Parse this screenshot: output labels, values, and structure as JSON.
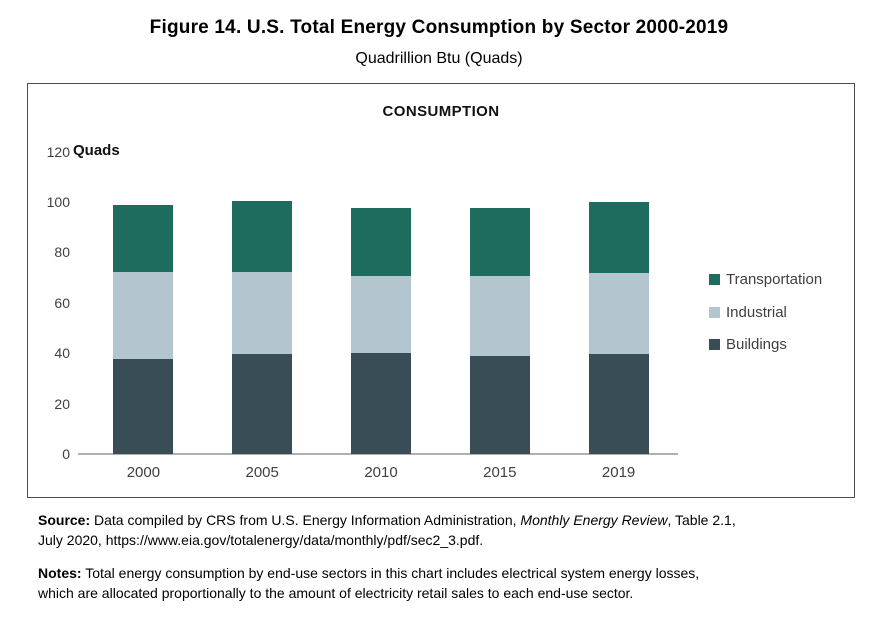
{
  "page": {
    "title": "Figure 14. U.S. Total Energy Consumption by Sector 2000-2019",
    "subtitle": "Quadrillion Btu (Quads)"
  },
  "chart": {
    "inner_title": "CONSUMPTION",
    "unit_label": "Quads",
    "colors": {
      "transportation": "#1E6C5D",
      "industrial": "#B3C6CF",
      "buildings": "#394D57",
      "axis_line": "#B0B0B0",
      "box_border": "#4D4D4D",
      "tick_text": "#3F3F3F"
    }
  },
  "chart_data": {
    "type": "bar",
    "stacked": true,
    "title": "CONSUMPTION",
    "ylabel": "Quads",
    "ylim": [
      0,
      120
    ],
    "yticks": [
      0,
      20,
      40,
      60,
      80,
      100,
      120
    ],
    "grid": false,
    "legend_position": "right",
    "categories": [
      "2000",
      "2005",
      "2010",
      "2015",
      "2019"
    ],
    "series": [
      {
        "name": "Buildings",
        "color": "#394D57",
        "values": [
          37.7,
          39.6,
          40.0,
          38.9,
          39.6
        ]
      },
      {
        "name": "Industrial",
        "color": "#B3C6CF",
        "values": [
          34.7,
          32.8,
          30.6,
          31.6,
          32.2
        ]
      },
      {
        "name": "Transportation",
        "color": "#1E6C5D",
        "values": [
          26.5,
          28.0,
          26.9,
          27.0,
          28.2
        ]
      }
    ],
    "legend_order": [
      "Transportation",
      "Industrial",
      "Buildings"
    ]
  },
  "footer": {
    "source": {
      "label": "Source:",
      "line1_pre_italic": " Data compiled by CRS from U.S. Energy Information Administration, ",
      "italic": "Monthly Energy Review",
      "line1_post_italic": ", Table 2.1,",
      "line2": "July 2020, https://www.eia.gov/totalenergy/data/monthly/pdf/sec2_3.pdf."
    },
    "notes": {
      "label": "Notes:",
      "line1": " Total energy consumption by end-use sectors in this chart includes electrical system energy losses,",
      "line2": "which are allocated proportionally to the amount of electricity retail sales to each end-use sector."
    }
  }
}
